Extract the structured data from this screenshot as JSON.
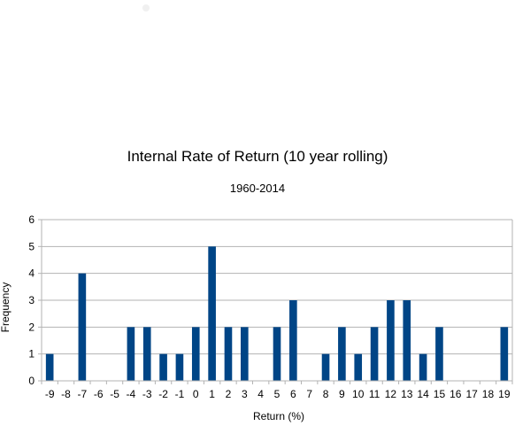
{
  "chart_data": {
    "type": "bar",
    "title": "Internal Rate of Return (10 year rolling)",
    "subtitle": "1960-2014",
    "xlabel": "Return (%)",
    "ylabel": "Frequency",
    "ylim": [
      0,
      6
    ],
    "yticks": [
      "0",
      "1",
      "2",
      "3",
      "4",
      "5",
      "6"
    ],
    "grid": true,
    "legend": "none",
    "bar_color": "#004586",
    "categories": [
      "-9",
      "-8",
      "-7",
      "-6",
      "-5",
      "-4",
      "-3",
      "-2",
      "-1",
      "0",
      "1",
      "2",
      "3",
      "4",
      "5",
      "6",
      "7",
      "8",
      "9",
      "10",
      "11",
      "12",
      "13",
      "14",
      "15",
      "16",
      "17",
      "18",
      "19"
    ],
    "values": [
      1,
      0,
      4,
      0,
      0,
      2,
      2,
      1,
      1,
      2,
      5,
      2,
      2,
      0,
      2,
      3,
      0,
      1,
      2,
      1,
      2,
      3,
      3,
      1,
      2,
      0,
      0,
      0,
      2
    ]
  }
}
